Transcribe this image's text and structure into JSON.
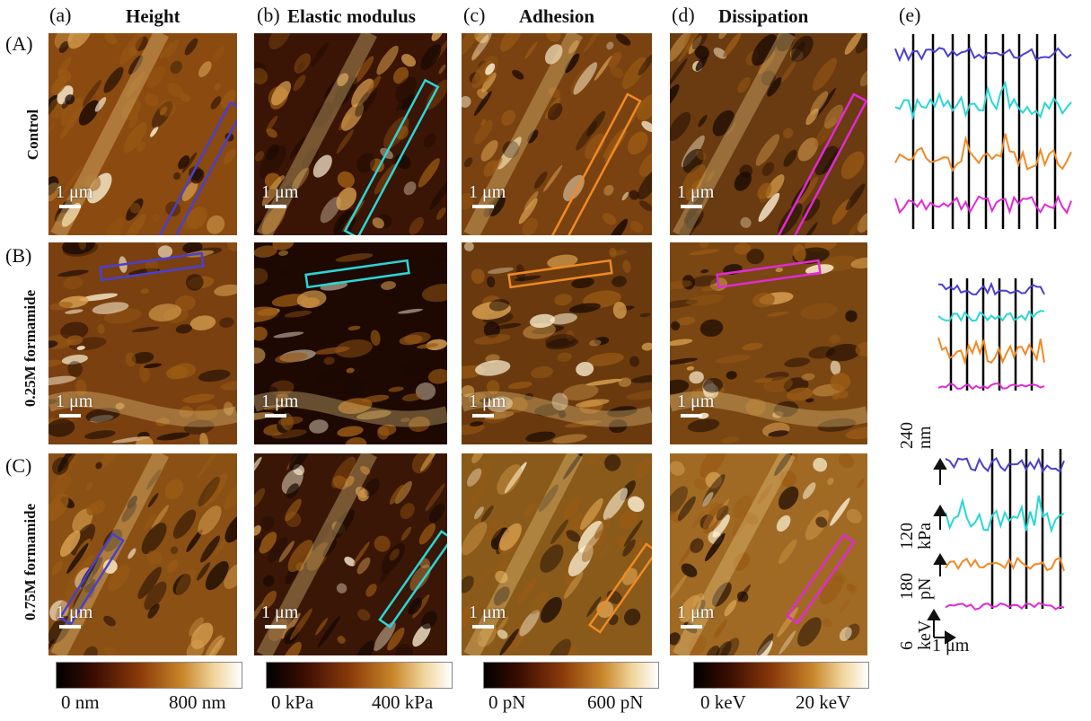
{
  "columns": [
    {
      "letter": "(a)",
      "title": "Height"
    },
    {
      "letter": "(b)",
      "title": "Elastic modulus"
    },
    {
      "letter": "(c)",
      "title": "Adhesion"
    },
    {
      "letter": "(d)",
      "title": "Dissipation"
    },
    {
      "letter": "(e)",
      "title": ""
    }
  ],
  "rows": [
    {
      "letter": "(A)",
      "label": "Control"
    },
    {
      "letter": "(B)",
      "label": "0.25M formamide"
    },
    {
      "letter": "(C)",
      "label": "0.75M formamide"
    }
  ],
  "scale_bar_label": "1 μm",
  "colorbars": [
    {
      "min": "0 nm",
      "max": "800 nm"
    },
    {
      "min": "0 kPa",
      "max": "400 kPa"
    },
    {
      "min": "0 pN",
      "max": "600 pN"
    },
    {
      "min": "0 keV",
      "max": "20 keV"
    }
  ],
  "profile_axes": [
    {
      "value": "240",
      "unit": "nm"
    },
    {
      "value": "120",
      "unit": "kPa"
    },
    {
      "value": "180",
      "unit": "pN"
    },
    {
      "value": "6",
      "unit": "keV"
    }
  ],
  "profile_scale_label": "1 μm",
  "colors": {
    "height": "#4a3fd0",
    "modulus": "#2ad6d6",
    "adhesion": "#f08a24",
    "dissipation": "#e02ad6",
    "afm_dark": "#1a0a02",
    "afm_mid": "#9a5a14",
    "afm_light": "#fff3d6"
  }
}
